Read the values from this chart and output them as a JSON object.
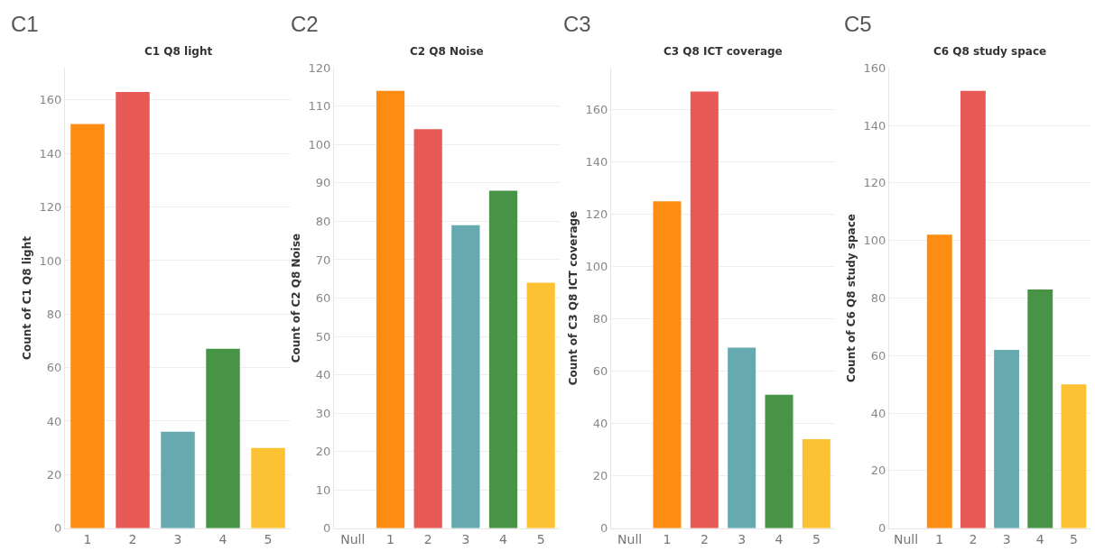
{
  "chart_data": [
    {
      "type": "bar",
      "title": "C1 Q8 light",
      "ylabel": "Count of C1 Q8 light",
      "annotations": [
        "C1"
      ],
      "categories": [
        "1",
        "2",
        "3",
        "4",
        "5"
      ],
      "values": [
        151,
        163,
        36,
        67,
        30
      ],
      "colors": [
        "#fc8c12",
        "#e75a55",
        "#66a9ae",
        "#479447",
        "#fdc234"
      ],
      "ylim": [
        0,
        172
      ],
      "yticks": [
        0,
        20,
        40,
        60,
        80,
        100,
        120,
        140,
        160
      ],
      "grid": "y"
    },
    {
      "type": "bar",
      "title": "C2 Q8 Noise",
      "ylabel": "Count of C2 Q8 Noise",
      "annotations": [
        "C2"
      ],
      "categories": [
        "Null",
        "1",
        "2",
        "3",
        "4",
        "5"
      ],
      "values": [
        null,
        114,
        104,
        79,
        88,
        64
      ],
      "colors": [
        "#cccccc",
        "#fc8c12",
        "#e75a55",
        "#66a9ae",
        "#479447",
        "#fdc234"
      ],
      "ylim": [
        0,
        120
      ],
      "yticks": [
        0,
        10,
        20,
        30,
        40,
        50,
        60,
        70,
        80,
        90,
        100,
        110,
        120
      ],
      "grid": "y"
    },
    {
      "type": "bar",
      "title": "C3 Q8 ICT coverage",
      "ylabel": "Count of C3 Q8 ICT coverage",
      "annotations": [
        "C3"
      ],
      "categories": [
        "Null",
        "1",
        "2",
        "3",
        "4",
        "5"
      ],
      "values": [
        null,
        125,
        167,
        69,
        51,
        34
      ],
      "colors": [
        "#cccccc",
        "#fc8c12",
        "#e75a55",
        "#66a9ae",
        "#479447",
        "#fdc234"
      ],
      "ylim": [
        0,
        176
      ],
      "yticks": [
        0,
        20,
        40,
        60,
        80,
        100,
        120,
        140,
        160
      ],
      "grid": "y"
    },
    {
      "type": "bar",
      "title": "C6 Q8 study space",
      "ylabel": "Count of C6 Q8 study space",
      "annotations": [
        "C5"
      ],
      "categories": [
        "Null",
        "1",
        "2",
        "3",
        "4",
        "5"
      ],
      "values": [
        null,
        102,
        152,
        62,
        83,
        50
      ],
      "colors": [
        "#cccccc",
        "#fc8c12",
        "#e75a55",
        "#66a9ae",
        "#479447",
        "#fdc234"
      ],
      "ylim": [
        0,
        160
      ],
      "yticks": [
        0,
        20,
        40,
        60,
        80,
        100,
        120,
        140,
        160
      ],
      "grid": "y"
    }
  ]
}
